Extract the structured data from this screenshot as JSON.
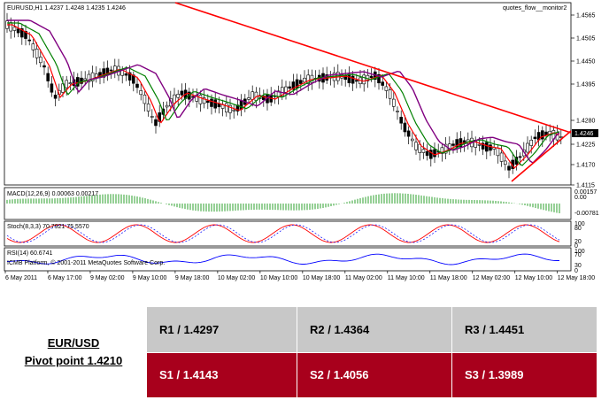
{
  "chart": {
    "symbol_info": "EURUSD,H1  1.4237 1.4248 1.4235 1.4246",
    "watermark": "quotes_flow__monitor2",
    "current_price": "1.4246",
    "price_ticks": [
      "1.4565",
      "1.4505",
      "1.4450",
      "1.4395",
      "1.4280",
      "1.4225",
      "1.4170",
      "1.4115"
    ],
    "time_ticks": [
      "6 May 2011",
      "6 May 17:00",
      "9 May 02:00",
      "9 May 10:00",
      "9 May 18:00",
      "10 May 02:00",
      "10 May 10:00",
      "10 May 18:00",
      "11 May 02:00",
      "11 May 10:00",
      "11 May 18:00",
      "12 May 02:00",
      "12 May 10:00",
      "12 May 18:00"
    ],
    "macd_label": "MACD(12,26,9)  0.00063  0.00217",
    "macd_ticks": [
      "0.00157",
      "0.00",
      "-0.00781"
    ],
    "stoch_label": "Stoch(8,3,3)  70.7921  75.5570",
    "stoch_ticks": [
      "100",
      "80",
      "20",
      "0"
    ],
    "rsi_label": "RSI(14) 60.6741",
    "rsi_copyright": "ICMB Platform, © 2001-2011 MetaQuotes Software Corp.",
    "rsi_ticks": [
      "100",
      "70",
      "30",
      "0"
    ],
    "colors": {
      "trendline": "#ff0000",
      "ma_fast": "#ff0000",
      "ma_mid": "#008000",
      "ma_slow": "#800080",
      "macd_hist": "#2ca02c",
      "rsi": "#0000ff"
    }
  },
  "pivot": {
    "pair": "EUR/USD",
    "pivot_point": "Pivot point 1.4210",
    "r1": "R1 / 1.4297",
    "r2": "R2 / 1.4364",
    "r3": "R3 / 1.4451",
    "s1": "S1 / 1.4143",
    "s2": "S2 / 1.4056",
    "s3": "S3 / 1.3989"
  }
}
